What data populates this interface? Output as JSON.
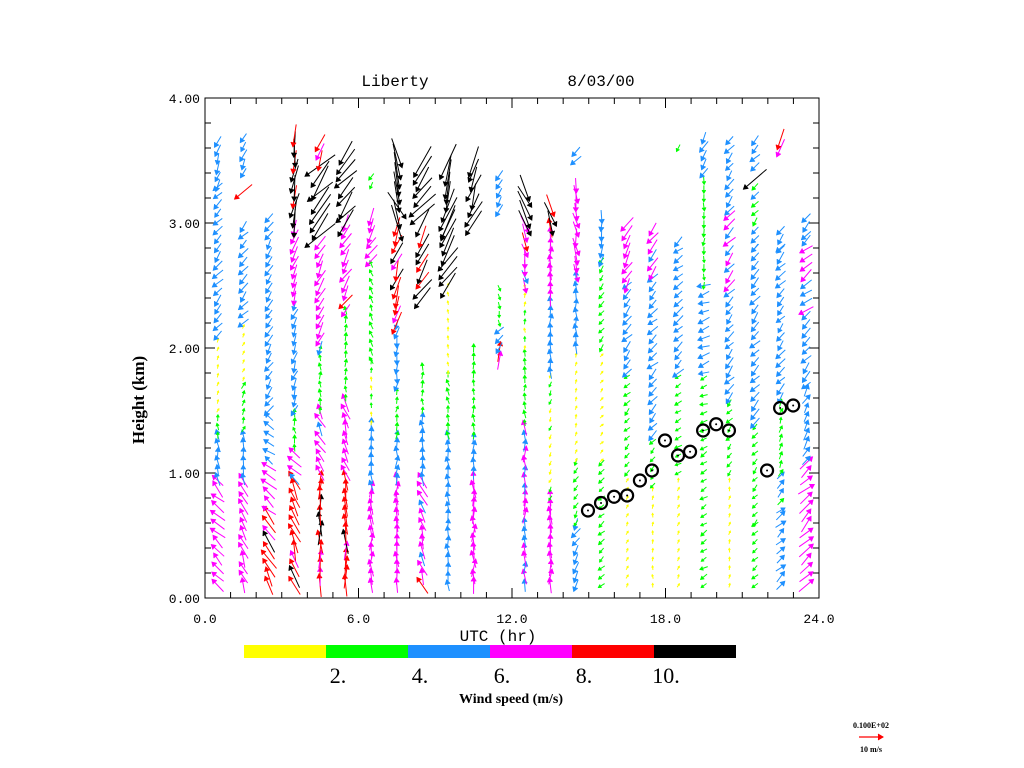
{
  "chart_data": {
    "type": "wind-profile-vector",
    "title_site": "Liberty",
    "title_date": "8/03/00",
    "xlabel": "UTC (hr)",
    "ylabel": "Height (km)",
    "xlim": [
      0,
      24
    ],
    "ylim": [
      0,
      4
    ],
    "x_ticks": [
      "0.0",
      "6.0",
      "12.0",
      "18.0",
      "24.0"
    ],
    "x_tick_values": [
      0,
      6,
      12,
      18,
      24
    ],
    "y_ticks": [
      "0.00",
      "1.00",
      "2.00",
      "3.00",
      "4.00"
    ],
    "y_tick_values": [
      0,
      1,
      2,
      3,
      4
    ],
    "colorbar": {
      "title": "Wind speed (m/s)",
      "labels": [
        "2.",
        "4.",
        "6.",
        "8.",
        "10."
      ],
      "thresholds": [
        2,
        4,
        6,
        8,
        10
      ],
      "colors": [
        "#ffff00",
        "#00ff00",
        "#1e90ff",
        "#ff00ff",
        "#ff0000",
        "#000000"
      ]
    },
    "reference_vector": {
      "scale_label": "0.100E+02",
      "unit_label": "10 m/s",
      "speed": 10,
      "color": "#ff0000"
    },
    "profile_note": "segments are [z_bottom_km, z_top_km, speed_m_s, wind_from_deg]",
    "profiles": [
      {
        "t": 0.5,
        "segments": [
          [
            0.1,
            0.95,
            7,
            135
          ],
          [
            0.95,
            1.3,
            5,
            170
          ],
          [
            1.3,
            1.5,
            3,
            170
          ],
          [
            1.5,
            2.1,
            1.5,
            200
          ],
          [
            2.1,
            3.3,
            5,
            40
          ],
          [
            3.3,
            3.7,
            5,
            20
          ]
        ]
      },
      {
        "t": 1.5,
        "segments": [
          [
            0.1,
            0.95,
            7,
            160
          ],
          [
            0.95,
            1.35,
            5,
            170
          ],
          [
            1.35,
            1.75,
            3,
            200
          ],
          [
            1.75,
            2.2,
            1.5,
            200
          ],
          [
            2.2,
            3.0,
            5,
            40
          ],
          [
            3.25,
            3.3,
            9,
            60
          ],
          [
            3.4,
            3.7,
            5,
            30
          ]
        ]
      },
      {
        "t": 2.5,
        "segments": [
          [
            0.1,
            0.7,
            9,
            150
          ],
          [
            0.7,
            1.1,
            7,
            135
          ],
          [
            1.1,
            1.5,
            5,
            130
          ],
          [
            1.5,
            3.1,
            5,
            30
          ]
        ]
      },
      {
        "t": 3.5,
        "segments": [
          [
            0.1,
            0.95,
            9,
            160
          ],
          [
            0.95,
            1.2,
            7,
            140
          ],
          [
            1.2,
            1.5,
            3,
            170
          ],
          [
            1.5,
            2.4,
            5,
            20
          ],
          [
            2.4,
            3.0,
            7,
            20
          ],
          [
            3.0,
            3.7,
            11,
            10
          ]
        ]
      },
      {
        "t": 4.5,
        "segments": [
          [
            0.1,
            1.0,
            9,
            180
          ],
          [
            1.0,
            1.5,
            7,
            150
          ],
          [
            1.5,
            2.0,
            3,
            180
          ],
          [
            2.0,
            2.9,
            7,
            30
          ],
          [
            2.9,
            3.5,
            14,
            40
          ],
          [
            3.5,
            3.7,
            8,
            20
          ]
        ]
      },
      {
        "t": 5.5,
        "segments": [
          [
            0.1,
            1.0,
            9,
            180
          ],
          [
            1.0,
            1.6,
            7,
            160
          ],
          [
            1.6,
            2.3,
            3,
            180
          ],
          [
            2.3,
            3.0,
            7,
            30
          ],
          [
            3.0,
            3.6,
            12,
            40
          ]
        ]
      },
      {
        "t": 6.5,
        "segments": [
          [
            0.1,
            0.9,
            7,
            180
          ],
          [
            0.9,
            1.4,
            5,
            170
          ],
          [
            1.4,
            1.9,
            2,
            180
          ],
          [
            1.9,
            2.7,
            3,
            160
          ],
          [
            2.7,
            3.1,
            7,
            30
          ],
          [
            3.3,
            3.4,
            3,
            30
          ]
        ]
      },
      {
        "t": 7.5,
        "segments": [
          [
            0.1,
            0.95,
            7,
            180
          ],
          [
            0.95,
            1.3,
            5,
            180
          ],
          [
            1.3,
            1.7,
            3,
            190
          ],
          [
            1.7,
            2.2,
            5,
            10
          ],
          [
            2.2,
            3.0,
            9,
            20
          ],
          [
            3.0,
            3.6,
            14,
            340
          ]
        ]
      },
      {
        "t": 8.5,
        "segments": [
          [
            0.1,
            0.95,
            7,
            160
          ],
          [
            0.95,
            1.5,
            5,
            175
          ],
          [
            1.5,
            1.9,
            3,
            180
          ],
          [
            2.4,
            2.9,
            10,
            30
          ],
          [
            3.0,
            3.5,
            13,
            40
          ]
        ]
      },
      {
        "t": 9.5,
        "segments": [
          [
            0.1,
            1.3,
            5,
            175
          ],
          [
            1.3,
            1.8,
            3,
            170
          ],
          [
            1.8,
            2.5,
            1.5,
            180
          ],
          [
            2.5,
            3.0,
            12,
            30
          ],
          [
            3.0,
            3.5,
            15,
            20
          ]
        ]
      },
      {
        "t": 10.5,
        "segments": [
          [
            0.1,
            1.0,
            7,
            180
          ],
          [
            1.0,
            1.3,
            5,
            180
          ],
          [
            1.3,
            2.0,
            3,
            180
          ],
          [
            3.0,
            3.5,
            12,
            20
          ]
        ]
      },
      {
        "t": 11.5,
        "segments": [
          [
            1.9,
            2.0,
            9,
            180
          ],
          [
            2.0,
            2.2,
            5,
            40
          ],
          [
            2.2,
            2.5,
            3,
            350
          ],
          [
            3.1,
            3.4,
            5,
            30
          ]
        ]
      },
      {
        "t": 12.5,
        "segments": [
          [
            0.1,
            1.4,
            6,
            180
          ],
          [
            1.4,
            2.0,
            3,
            180
          ],
          [
            2.0,
            2.5,
            2,
            180
          ],
          [
            2.5,
            3.0,
            7,
            350
          ],
          [
            3.0,
            3.3,
            12,
            340
          ]
        ]
      },
      {
        "t": 13.5,
        "segments": [
          [
            0.1,
            0.8,
            7,
            180
          ],
          [
            0.8,
            1.8,
            2,
            20
          ],
          [
            1.8,
            2.4,
            5,
            180
          ],
          [
            2.4,
            3.0,
            7,
            180
          ],
          [
            3.0,
            3.2,
            10,
            340
          ]
        ]
      },
      {
        "t": 14.5,
        "segments": [
          [
            0.1,
            0.6,
            5,
            30
          ],
          [
            0.6,
            1.1,
            3,
            30
          ],
          [
            1.1,
            2.0,
            1.5,
            200
          ],
          [
            2.0,
            2.6,
            5,
            180
          ],
          [
            2.6,
            3.3,
            7,
            350
          ],
          [
            3.5,
            3.6,
            5,
            40
          ]
        ]
      },
      {
        "t": 15.5,
        "segments": [
          [
            0.1,
            1.1,
            3,
            50
          ],
          [
            1.1,
            2.0,
            1.5,
            220
          ],
          [
            2.0,
            2.7,
            3,
            40
          ],
          [
            2.7,
            3.1,
            5,
            10
          ]
        ]
      },
      {
        "t": 16.5,
        "segments": [
          [
            0.1,
            1.0,
            1.5,
            200
          ],
          [
            1.0,
            1.8,
            3,
            45
          ],
          [
            1.8,
            2.5,
            5,
            40
          ],
          [
            2.5,
            3.0,
            7,
            30
          ]
        ]
      },
      {
        "t": 17.5,
        "segments": [
          [
            0.1,
            0.9,
            1.5,
            180
          ],
          [
            0.9,
            1.3,
            3,
            45
          ],
          [
            1.3,
            2.6,
            5,
            45
          ],
          [
            2.6,
            3.0,
            7,
            40
          ]
        ]
      },
      {
        "t": 18.5,
        "segments": [
          [
            0.1,
            1.0,
            1.5,
            200
          ],
          [
            1.0,
            1.8,
            3,
            60
          ],
          [
            1.8,
            2.9,
            5,
            50
          ],
          [
            3.6,
            3.65,
            3,
            30
          ]
        ]
      },
      {
        "t": 19.5,
        "segments": [
          [
            0.1,
            1.2,
            3,
            60
          ],
          [
            1.2,
            1.8,
            3,
            70
          ],
          [
            1.8,
            2.5,
            5,
            70
          ],
          [
            2.5,
            3.4,
            3,
            0
          ],
          [
            3.4,
            3.7,
            5,
            30
          ]
        ]
      },
      {
        "t": 20.5,
        "segments": [
          [
            0.1,
            1.0,
            1.5,
            190
          ],
          [
            1.0,
            1.6,
            3,
            40
          ],
          [
            1.6,
            2.5,
            5,
            40
          ],
          [
            2.5,
            3.1,
            6,
            40
          ],
          [
            3.1,
            3.7,
            5,
            40
          ]
        ]
      },
      {
        "t": 21.5,
        "segments": [
          [
            0.1,
            0.6,
            3,
            45
          ],
          [
            0.6,
            1.4,
            3,
            40
          ],
          [
            1.4,
            2.8,
            5,
            40
          ],
          [
            2.8,
            3.3,
            4,
            40
          ],
          [
            3.35,
            3.4,
            12,
            45
          ],
          [
            3.45,
            3.7,
            5,
            40
          ]
        ]
      },
      {
        "t": 22.5,
        "segments": [
          [
            0.1,
            0.7,
            5,
            225
          ],
          [
            0.7,
            1.0,
            4,
            225
          ],
          [
            1.0,
            1.6,
            3,
            200
          ],
          [
            1.6,
            2.8,
            5,
            40
          ],
          [
            2.8,
            3.0,
            5,
            40
          ],
          [
            3.6,
            3.7,
            9,
            30
          ]
        ]
      },
      {
        "t": 23.5,
        "segments": [
          [
            0.1,
            1.1,
            7,
            225
          ],
          [
            1.1,
            1.7,
            5,
            210
          ],
          [
            1.7,
            2.3,
            5,
            40
          ],
          [
            2.3,
            2.9,
            6,
            50
          ],
          [
            2.9,
            3.1,
            5,
            40
          ]
        ]
      }
    ],
    "boundary_layer_markers": {
      "x": [
        14.97,
        15.48,
        15.99,
        16.5,
        17.0,
        17.47,
        17.98,
        18.49,
        18.96,
        19.47,
        19.98,
        20.48,
        21.97,
        22.48,
        22.99
      ],
      "y": [
        0.7,
        0.76,
        0.81,
        0.82,
        0.94,
        1.02,
        1.26,
        1.14,
        1.17,
        1.34,
        1.39,
        1.34,
        1.02,
        1.52,
        1.54
      ]
    }
  }
}
